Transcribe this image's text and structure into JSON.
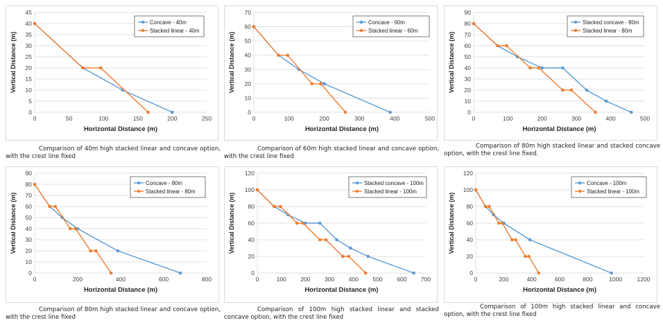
{
  "colors": {
    "blue": "#5B9BD5",
    "orange": "#ED7D31",
    "axis": "#D9D9D9",
    "text": "#404040"
  },
  "chart_data": [
    {
      "type": "line",
      "xlabel": "Horizontal Distance (m)",
      "ylabel": "Vertical Distance (m)",
      "xlim": [
        0,
        250
      ],
      "ylim": [
        0,
        45
      ],
      "xticks": [
        "0",
        "50",
        "100",
        "150",
        "200",
        "250"
      ],
      "yticks": [
        "0",
        "5",
        "10",
        "15",
        "20",
        "25",
        "30",
        "35",
        "40",
        "45"
      ],
      "legend": "top-right",
      "series": [
        {
          "name": "Concave - 40m",
          "color": "blue",
          "points": [
            [
              0,
              40
            ],
            [
              70,
              20
            ],
            [
              128,
              10
            ],
            [
              200,
              0
            ]
          ]
        },
        {
          "name": "Stacked linear - 40m",
          "color": "orange",
          "points": [
            [
              0,
              40
            ],
            [
              70,
              20
            ],
            [
              96,
              20
            ],
            [
              165,
              0
            ]
          ]
        }
      ],
      "caption": "Comparison of 40m high stacked linear and concave option, with the crest line fixed"
    },
    {
      "type": "line",
      "xlabel": "Horizontal Distance (m)",
      "ylabel": "Vertical Distance (m)",
      "xlim": [
        0,
        500
      ],
      "ylim": [
        0,
        70
      ],
      "xticks": [
        "0",
        "100",
        "200",
        "300",
        "400",
        "500"
      ],
      "yticks": [
        "0",
        "10",
        "20",
        "30",
        "40",
        "50",
        "60",
        "70"
      ],
      "legend": "top-right",
      "series": [
        {
          "name": "Concave - 60m",
          "color": "blue",
          "points": [
            [
              0,
              60
            ],
            [
              70,
              40
            ],
            [
              128,
              30
            ],
            [
              200,
              20
            ],
            [
              387,
              0
            ]
          ]
        },
        {
          "name": "Stacked linear - 60m",
          "color": "orange",
          "points": [
            [
              0,
              60
            ],
            [
              70,
              40
            ],
            [
              96,
              40
            ],
            [
              165,
              20
            ],
            [
              190,
              20
            ],
            [
              260,
              0
            ]
          ]
        }
      ],
      "caption": "Comparison of 60m high stacked linear and concave option, with the crest line fixed"
    },
    {
      "type": "line",
      "xlabel": "Horizontal Distance (m)",
      "ylabel": "Vertical Distance (m)",
      "xlim": [
        0,
        500
      ],
      "ylim": [
        0,
        90
      ],
      "xticks": [
        "0",
        "100",
        "200",
        "300",
        "400",
        "500"
      ],
      "yticks": [
        "0",
        "10",
        "20",
        "30",
        "40",
        "50",
        "60",
        "70",
        "80",
        "90"
      ],
      "legend": "top-right",
      "series": [
        {
          "name": "Stacked concave - 80m",
          "color": "blue",
          "points": [
            [
              0,
              80
            ],
            [
              70,
              60
            ],
            [
              128,
              50
            ],
            [
              200,
              40
            ],
            [
              260,
              40
            ],
            [
              330,
              20
            ],
            [
              387,
              10
            ],
            [
              460,
              0
            ]
          ]
        },
        {
          "name": "Stacked linear - 80m",
          "color": "orange",
          "points": [
            [
              0,
              80
            ],
            [
              70,
              60
            ],
            [
              96,
              60
            ],
            [
              165,
              40
            ],
            [
              190,
              40
            ],
            [
              260,
              20
            ],
            [
              285,
              20
            ],
            [
              355,
              0
            ]
          ]
        }
      ],
      "caption": "Comparison of 80m high stacked linear and stacked concave option, with the crest line fixed."
    },
    {
      "type": "line",
      "xlabel": "Horizontal Distance (m)",
      "ylabel": "Vertical Distance (m)",
      "xlim": [
        0,
        800
      ],
      "ylim": [
        0,
        90
      ],
      "xticks": [
        "0",
        "200",
        "400",
        "600",
        "800"
      ],
      "yticks": [
        "0",
        "10",
        "20",
        "30",
        "40",
        "50",
        "60",
        "70",
        "80",
        "90"
      ],
      "legend": "top-right",
      "series": [
        {
          "name": "Concave - 80m",
          "color": "blue",
          "points": [
            [
              0,
              80
            ],
            [
              70,
              60
            ],
            [
              128,
              50
            ],
            [
              200,
              40
            ],
            [
              387,
              20
            ],
            [
              678,
              0
            ]
          ]
        },
        {
          "name": "Stacked linear - 80m",
          "color": "orange",
          "points": [
            [
              0,
              80
            ],
            [
              70,
              60
            ],
            [
              96,
              60
            ],
            [
              165,
              40
            ],
            [
              190,
              40
            ],
            [
              260,
              20
            ],
            [
              285,
              20
            ],
            [
              355,
              0
            ]
          ]
        }
      ],
      "caption": "Comparison of 80m high stacked linear and concave option, with the crest line fixed"
    },
    {
      "type": "line",
      "xlabel": "Horizontal Distance (m)",
      "ylabel": "Vertical Distance (m)",
      "xlim": [
        0,
        700
      ],
      "ylim": [
        0,
        120
      ],
      "xticks": [
        "0",
        "100",
        "200",
        "300",
        "400",
        "500",
        "600",
        "700"
      ],
      "yticks": [
        "0",
        "20",
        "40",
        "60",
        "80",
        "100",
        "120"
      ],
      "legend": "top-right",
      "series": [
        {
          "name": "Stacked concave - 100m",
          "color": "blue",
          "points": [
            [
              0,
              100
            ],
            [
              70,
              80
            ],
            [
              128,
              70
            ],
            [
              200,
              60
            ],
            [
              260,
              60
            ],
            [
              330,
              40
            ],
            [
              387,
              30
            ],
            [
              460,
              20
            ],
            [
              650,
              0
            ]
          ]
        },
        {
          "name": "Stacked linear - 100m",
          "color": "orange",
          "points": [
            [
              0,
              100
            ],
            [
              70,
              80
            ],
            [
              96,
              80
            ],
            [
              165,
              60
            ],
            [
              190,
              60
            ],
            [
              260,
              40
            ],
            [
              285,
              40
            ],
            [
              355,
              20
            ],
            [
              380,
              20
            ],
            [
              450,
              0
            ]
          ]
        }
      ],
      "caption": "Comparison of 100m high stacked linear and stacked concave option, with the crest line fixed"
    },
    {
      "type": "line",
      "xlabel": "Horizontal Distance (m)",
      "ylabel": "Vertical Distance (m)",
      "xlim": [
        0,
        1200
      ],
      "ylim": [
        0,
        120
      ],
      "xticks": [
        "0",
        "200",
        "400",
        "600",
        "800",
        "1000",
        "1200"
      ],
      "yticks": [
        "0",
        "20",
        "40",
        "60",
        "80",
        "100",
        "120"
      ],
      "legend": "top-right",
      "series": [
        {
          "name": "Concave - 100m",
          "color": "blue",
          "points": [
            [
              0,
              100
            ],
            [
              70,
              80
            ],
            [
              128,
              70
            ],
            [
              200,
              60
            ],
            [
              387,
              40
            ],
            [
              970,
              0
            ]
          ]
        },
        {
          "name": "Stacked linear - 100m",
          "color": "orange",
          "points": [
            [
              0,
              100
            ],
            [
              70,
              80
            ],
            [
              96,
              80
            ],
            [
              165,
              60
            ],
            [
              190,
              60
            ],
            [
              260,
              40
            ],
            [
              285,
              40
            ],
            [
              355,
              20
            ],
            [
              380,
              20
            ],
            [
              450,
              0
            ]
          ]
        }
      ],
      "caption": "Comparison of 100m high stacked linear and concave option, with the crest line fixed"
    }
  ]
}
